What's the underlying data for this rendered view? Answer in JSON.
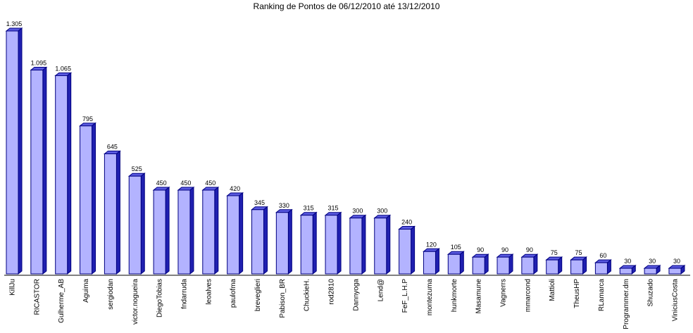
{
  "chart_data": {
    "type": "bar",
    "title": "Ranking de Pontos de 06/12/2010 até 13/12/2010",
    "xlabel": "",
    "ylabel": "",
    "ylim": [
      0,
      1305
    ],
    "grid": false,
    "legend": "none",
    "categories": [
      "KillJu",
      "RICASTOR",
      "Gulherme_AB",
      "Aguima",
      "sergiodan",
      "victor.nogueira",
      "DiegoTobias",
      "fndarruda",
      "leoalves",
      "paulofma",
      "breveglieri",
      "Pabison_BR",
      "ChuckieH.",
      "rod2810",
      "Dannyoga",
      "Lend@",
      "FeF_L.H.P",
      "montezuma",
      "hunkmorte",
      "Masamune",
      "Vagnerrs",
      "mmarcond",
      "Mattioli",
      "TheusHP",
      "RLamarca",
      "Programmer.dm",
      "Shuzado",
      "ViniciusCosta"
    ],
    "values": [
      1305,
      1095,
      1065,
      795,
      645,
      525,
      450,
      450,
      450,
      420,
      345,
      330,
      315,
      315,
      300,
      300,
      240,
      120,
      105,
      90,
      90,
      90,
      75,
      75,
      60,
      30,
      30,
      30
    ],
    "value_labels": [
      "1.305",
      "1.095",
      "1.065",
      "795",
      "645",
      "525",
      "450",
      "450",
      "450",
      "420",
      "345",
      "330",
      "315",
      "315",
      "300",
      "300",
      "240",
      "120",
      "105",
      "90",
      "90",
      "90",
      "75",
      "75",
      "60",
      "30",
      "30",
      "30"
    ],
    "colors": {
      "bar_front": "#b3b3ff",
      "bar_side": "#2020b0",
      "bar_top": "#5a5ae0",
      "bar_outline": "#000080",
      "axis": "#000000"
    }
  }
}
